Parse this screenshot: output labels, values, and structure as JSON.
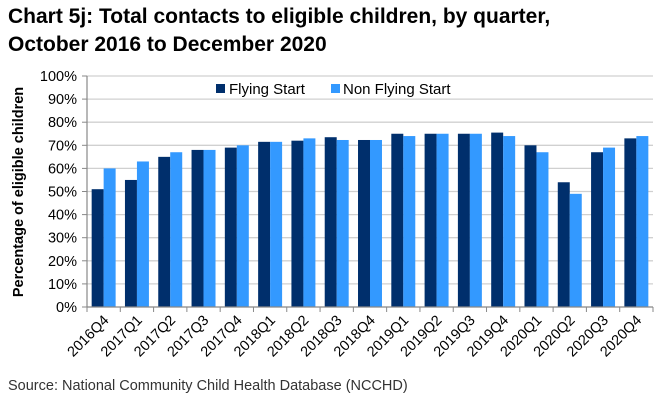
{
  "title": "Chart 5j: Total contacts to eligible children, by quarter, October 2016 to December 2020",
  "title_line1": "Chart 5j: Total contacts to eligible children, by quarter,",
  "title_line2": "October 2016 to December 2020",
  "source": "Source: National Community Child Health Database (NCCHD)",
  "chart_data": {
    "type": "bar",
    "title": "Chart 5j: Total contacts to eligible children, by quarter, October 2016 to December 2020",
    "xlabel": "",
    "ylabel": "Percentage of eligible children",
    "ylim": [
      0,
      100
    ],
    "yticks": [
      "0%",
      "10%",
      "20%",
      "30%",
      "40%",
      "50%",
      "60%",
      "70%",
      "80%",
      "90%",
      "100%"
    ],
    "grid": true,
    "legend_position": "top",
    "categories": [
      "2016Q4",
      "2017Q1",
      "2017Q2",
      "2017Q3",
      "2017Q4",
      "2018Q1",
      "2018Q2",
      "2018Q3",
      "2018Q4",
      "2019Q1",
      "2019Q2",
      "2019Q3",
      "2019Q4",
      "2020Q1",
      "2020Q2",
      "2020Q3",
      "2020Q4"
    ],
    "series": [
      {
        "name": "Flying Start",
        "color": "#002f6c",
        "values": [
          51,
          55,
          65,
          68,
          69,
          71.5,
          72,
          73.5,
          72.3,
          75,
          75,
          75,
          75.5,
          70,
          54,
          67,
          73
        ]
      },
      {
        "name": "Non Flying Start",
        "color": "#3399ff",
        "values": [
          60,
          63,
          67,
          68,
          70,
          71.5,
          73,
          72.3,
          72.3,
          74,
          75,
          75,
          74,
          67,
          49,
          69,
          74
        ]
      }
    ]
  }
}
